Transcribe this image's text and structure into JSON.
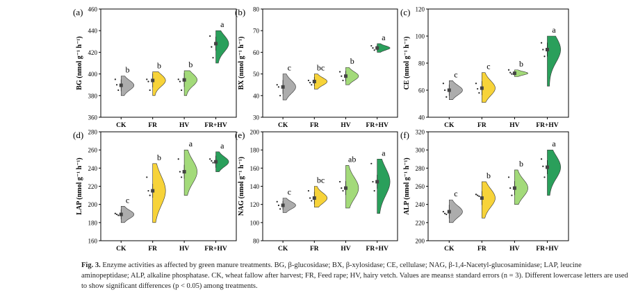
{
  "colors": {
    "CK": "#a8a8a8",
    "FR": "#f7d12e",
    "HV": "#9ed873",
    "FR+HV": "#1f9a52"
  },
  "caption": {
    "label": "Fig. 3.",
    "text": "Enzyme activities as affected by green manure treatments. BG, β-glucosidase; BX, β-xylosidase; CE, cellulase; NAG, β-1,4-Nacetyl-glucosaminidase; LAP, leucine aminopeptidase; ALP, alkaline phosphatase. CK, wheat fallow after harvest; FR, Feed rape; HV, hairy vetch. Values are means± standard errors (n = 3). Different lowercase letters are used to show significant differences (p < 0.05) among treatments."
  },
  "chart_data": [
    {
      "type": "violin",
      "panel": "(a)",
      "title": "",
      "xlabel": "",
      "ylabel": "BG (nmol g⁻¹ h⁻¹)",
      "ylim": [
        360,
        460
      ],
      "yticks": [
        360,
        380,
        400,
        420,
        440,
        460
      ],
      "categories": [
        "CK",
        "FR",
        "HV",
        "FR+HV"
      ],
      "values": [
        389.5,
        394,
        394.5,
        428
      ],
      "range": [
        [
          380,
          398
        ],
        [
          380,
          402
        ],
        [
          380,
          403
        ],
        [
          410,
          440
        ]
      ],
      "points": [
        [
          385,
          390,
          395
        ],
        [
          385,
          393,
          395
        ],
        [
          385,
          393,
          395
        ],
        [
          415,
          425,
          435
        ]
      ],
      "letters": [
        "b",
        "b",
        "b",
        "a"
      ]
    },
    {
      "type": "violin",
      "panel": "(b)",
      "title": "",
      "xlabel": "",
      "ylabel": "BX (nmol g⁻¹ h⁻¹)",
      "ylim": [
        30,
        80
      ],
      "yticks": [
        30,
        40,
        50,
        60,
        70,
        80
      ],
      "categories": [
        "CK",
        "FR",
        "HV",
        "FR+HV"
      ],
      "values": [
        44,
        46.5,
        49,
        62
      ],
      "range": [
        [
          38,
          50
        ],
        [
          43,
          50
        ],
        [
          45,
          53
        ],
        [
          60,
          64
        ]
      ],
      "points": [
        [
          40,
          44,
          45
        ],
        [
          45,
          46,
          47
        ],
        [
          47,
          49,
          51
        ],
        [
          61,
          62,
          63
        ]
      ],
      "letters": [
        "c",
        "bc",
        "b",
        "a"
      ]
    },
    {
      "type": "violin",
      "panel": "(c)",
      "title": "",
      "xlabel": "",
      "ylabel": "CE (nmol g⁻¹ h⁻¹)",
      "ylim": [
        40,
        120
      ],
      "yticks": [
        40,
        60,
        80,
        100,
        120
      ],
      "categories": [
        "CK",
        "FR",
        "HV",
        "FR+HV"
      ],
      "values": [
        60,
        61.5,
        72.5,
        90
      ],
      "range": [
        [
          53,
          67
        ],
        [
          51,
          73
        ],
        [
          70,
          75
        ],
        [
          63,
          100
        ]
      ],
      "points": [
        [
          55,
          60,
          65
        ],
        [
          58,
          61,
          65
        ],
        [
          72,
          73,
          75
        ],
        [
          85,
          90,
          95
        ]
      ],
      "letters": [
        "c",
        "c",
        "b",
        "a"
      ]
    },
    {
      "type": "violin",
      "panel": "(d)",
      "title": "",
      "xlabel": "",
      "ylabel": "LAP (nmol g⁻¹ h⁻¹)",
      "ylim": [
        160,
        280
      ],
      "yticks": [
        160,
        180,
        200,
        220,
        240,
        260,
        280
      ],
      "categories": [
        "CK",
        "FR",
        "HV",
        "FR+HV"
      ],
      "values": [
        189,
        215,
        236,
        247
      ],
      "range": [
        [
          180,
          198
        ],
        [
          180,
          245
        ],
        [
          210,
          260
        ],
        [
          236,
          258
        ]
      ],
      "points": [
        [
          188,
          189,
          190
        ],
        [
          210,
          215,
          230
        ],
        [
          230,
          236,
          250
        ],
        [
          246,
          248,
          250
        ]
      ],
      "letters": [
        "c",
        "b",
        "a",
        "a"
      ]
    },
    {
      "type": "violin",
      "panel": "(e)",
      "title": "",
      "xlabel": "",
      "ylabel": "NAG (nmol g⁻¹ h⁻¹)",
      "ylim": [
        80,
        200
      ],
      "yticks": [
        80,
        100,
        120,
        140,
        160,
        180,
        200
      ],
      "categories": [
        "CK",
        "FR",
        "HV",
        "FR+HV"
      ],
      "values": [
        119,
        127,
        138,
        145
      ],
      "range": [
        [
          111,
          127
        ],
        [
          117,
          140
        ],
        [
          116,
          163
        ],
        [
          110,
          170
        ]
      ],
      "points": [
        [
          115,
          119,
          123
        ],
        [
          124,
          127,
          135
        ],
        [
          135,
          138,
          145
        ],
        [
          135,
          145,
          165
        ]
      ],
      "letters": [
        "c",
        "bc",
        "ab",
        "a"
      ]
    },
    {
      "type": "violin",
      "panel": "(f)",
      "title": "",
      "xlabel": "",
      "ylabel": "ALP (nmol g⁻¹ h⁻¹)",
      "ylim": [
        200,
        320
      ],
      "yticks": [
        200,
        220,
        240,
        260,
        280,
        300,
        320
      ],
      "categories": [
        "CK",
        "FR",
        "HV",
        "FR+HV"
      ],
      "values": [
        232,
        247,
        258,
        281
      ],
      "range": [
        [
          220,
          245
        ],
        [
          225,
          265
        ],
        [
          240,
          278
        ],
        [
          250,
          300
        ]
      ],
      "points": [
        [
          229,
          230,
          232
        ],
        [
          249,
          250,
          251
        ],
        [
          250,
          258,
          270
        ],
        [
          270,
          282,
          290
        ]
      ],
      "letters": [
        "c",
        "b",
        "b",
        "a"
      ]
    }
  ]
}
